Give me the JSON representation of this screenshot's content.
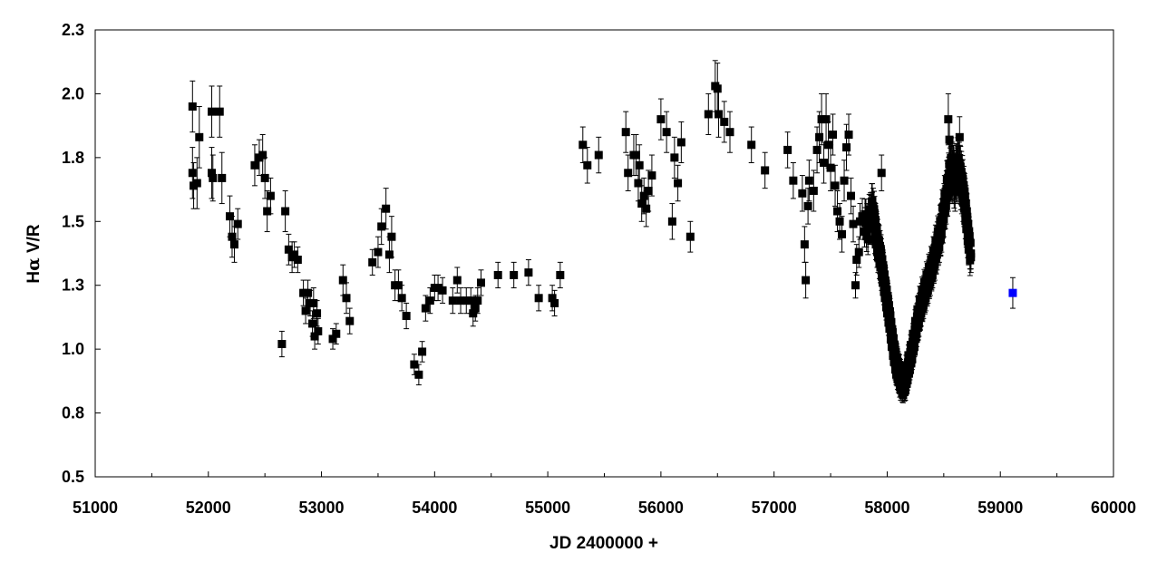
{
  "chart_data": {
    "type": "scatter",
    "title": "",
    "xlabel": "JD 2400000 +",
    "ylabel_prefix": "H",
    "ylabel_greek": "α",
    "ylabel_suffix": " V/R",
    "xlim": [
      51000,
      60000
    ],
    "ylim": [
      0.5,
      2.25
    ],
    "x_ticks": [
      "51000",
      "52000",
      "53000",
      "54000",
      "55000",
      "56000",
      "57000",
      "58000",
      "59000",
      "60000"
    ],
    "x_tick_values": [
      51000,
      52000,
      53000,
      54000,
      55000,
      56000,
      57000,
      58000,
      59000,
      60000
    ],
    "y_ticks": [
      "0.5",
      "0.8",
      "1.0",
      "1.3",
      "1.5",
      "1.8",
      "2.0",
      "2.3"
    ],
    "y_tick_values": [
      0.5,
      0.75,
      1.0,
      1.25,
      1.5,
      1.75,
      2.0,
      2.25
    ],
    "grid": false,
    "legend": "none",
    "colors": {
      "main": "#000000",
      "highlight": "#0000ff"
    },
    "series": [
      {
        "marker": "square",
        "color": "#000000",
        "points": [
          [
            51860,
            1.95,
            0.1
          ],
          [
            51860,
            1.69,
            0.1
          ],
          [
            51870,
            1.64,
            0.09
          ],
          [
            51900,
            1.65,
            0.1
          ],
          [
            51920,
            1.83,
            0.12
          ],
          [
            52030,
            1.93,
            0.1
          ],
          [
            52030,
            1.69,
            0.1
          ],
          [
            52040,
            1.67,
            0.09
          ],
          [
            52100,
            1.93,
            0.1
          ],
          [
            52120,
            1.67,
            0.1
          ],
          [
            52190,
            1.52,
            0.08
          ],
          [
            52210,
            1.44,
            0.08
          ],
          [
            52230,
            1.41,
            0.07
          ],
          [
            52260,
            1.49,
            0.06
          ],
          [
            52410,
            1.72,
            0.08
          ],
          [
            52450,
            1.75,
            0.07
          ],
          [
            52480,
            1.76,
            0.08
          ],
          [
            52500,
            1.67,
            0.08
          ],
          [
            52520,
            1.54,
            0.08
          ],
          [
            52550,
            1.6,
            0.07
          ],
          [
            52650,
            1.02,
            0.05
          ],
          [
            52680,
            1.54,
            0.08
          ],
          [
            52710,
            1.39,
            0.06
          ],
          [
            52740,
            1.36,
            0.06
          ],
          [
            52760,
            1.37,
            0.05
          ],
          [
            52790,
            1.35,
            0.05
          ],
          [
            52840,
            1.22,
            0.05
          ],
          [
            52860,
            1.15,
            0.05
          ],
          [
            52880,
            1.22,
            0.05
          ],
          [
            52900,
            1.18,
            0.05
          ],
          [
            52920,
            1.1,
            0.05
          ],
          [
            52930,
            1.18,
            0.06
          ],
          [
            52940,
            1.05,
            0.05
          ],
          [
            52960,
            1.14,
            0.05
          ],
          [
            52970,
            1.07,
            0.05
          ],
          [
            53100,
            1.04,
            0.04
          ],
          [
            53130,
            1.06,
            0.04
          ],
          [
            53190,
            1.27,
            0.06
          ],
          [
            53220,
            1.2,
            0.06
          ],
          [
            53250,
            1.11,
            0.05
          ],
          [
            53450,
            1.34,
            0.05
          ],
          [
            53500,
            1.38,
            0.06
          ],
          [
            53530,
            1.48,
            0.07
          ],
          [
            53570,
            1.55,
            0.08
          ],
          [
            53600,
            1.37,
            0.07
          ],
          [
            53620,
            1.44,
            0.08
          ],
          [
            53650,
            1.25,
            0.06
          ],
          [
            53680,
            1.25,
            0.06
          ],
          [
            53710,
            1.2,
            0.05
          ],
          [
            53750,
            1.13,
            0.05
          ],
          [
            53820,
            0.94,
            0.04
          ],
          [
            53860,
            0.9,
            0.04
          ],
          [
            53890,
            0.99,
            0.04
          ],
          [
            53920,
            1.16,
            0.05
          ],
          [
            53960,
            1.19,
            0.05
          ],
          [
            54000,
            1.24,
            0.05
          ],
          [
            54030,
            1.24,
            0.05
          ],
          [
            54070,
            1.23,
            0.05
          ],
          [
            54160,
            1.19,
            0.05
          ],
          [
            54200,
            1.27,
            0.05
          ],
          [
            54230,
            1.19,
            0.05
          ],
          [
            54280,
            1.19,
            0.05
          ],
          [
            54320,
            1.19,
            0.05
          ],
          [
            54340,
            1.14,
            0.05
          ],
          [
            54360,
            1.16,
            0.05
          ],
          [
            54380,
            1.19,
            0.05
          ],
          [
            54410,
            1.26,
            0.05
          ],
          [
            54560,
            1.29,
            0.05
          ],
          [
            54700,
            1.29,
            0.05
          ],
          [
            54830,
            1.3,
            0.05
          ],
          [
            54920,
            1.2,
            0.05
          ],
          [
            55040,
            1.2,
            0.05
          ],
          [
            55060,
            1.18,
            0.05
          ],
          [
            55110,
            1.29,
            0.05
          ],
          [
            55310,
            1.8,
            0.07
          ],
          [
            55350,
            1.72,
            0.07
          ],
          [
            55450,
            1.76,
            0.07
          ],
          [
            55690,
            1.85,
            0.08
          ],
          [
            55710,
            1.69,
            0.07
          ],
          [
            55760,
            1.76,
            0.08
          ],
          [
            55780,
            1.76,
            0.08
          ],
          [
            55800,
            1.65,
            0.07
          ],
          [
            55810,
            1.72,
            0.08
          ],
          [
            55830,
            1.57,
            0.07
          ],
          [
            55850,
            1.6,
            0.07
          ],
          [
            55870,
            1.55,
            0.07
          ],
          [
            55890,
            1.62,
            0.08
          ],
          [
            55920,
            1.68,
            0.08
          ],
          [
            56000,
            1.9,
            0.08
          ],
          [
            56050,
            1.85,
            0.08
          ],
          [
            56100,
            1.5,
            0.07
          ],
          [
            56120,
            1.75,
            0.08
          ],
          [
            56150,
            1.65,
            0.07
          ],
          [
            56180,
            1.81,
            0.08
          ],
          [
            56260,
            1.44,
            0.06
          ],
          [
            56420,
            1.92,
            0.08
          ],
          [
            56480,
            2.03,
            0.1
          ],
          [
            56500,
            2.02,
            0.1
          ],
          [
            56510,
            1.92,
            0.09
          ],
          [
            56560,
            1.89,
            0.08
          ],
          [
            56610,
            1.85,
            0.08
          ],
          [
            56800,
            1.8,
            0.07
          ],
          [
            56920,
            1.7,
            0.07
          ],
          [
            57120,
            1.78,
            0.07
          ],
          [
            57170,
            1.66,
            0.07
          ],
          [
            57250,
            1.61,
            0.07
          ],
          [
            57270,
            1.41,
            0.07
          ],
          [
            57280,
            1.27,
            0.07
          ],
          [
            57300,
            1.56,
            0.07
          ],
          [
            57310,
            1.66,
            0.08
          ],
          [
            57350,
            1.62,
            0.08
          ],
          [
            57380,
            1.78,
            0.09
          ],
          [
            57400,
            1.83,
            0.1
          ],
          [
            57420,
            1.9,
            0.1
          ],
          [
            57440,
            1.73,
            0.08
          ],
          [
            57460,
            1.9,
            0.1
          ],
          [
            57480,
            1.8,
            0.09
          ],
          [
            57500,
            1.71,
            0.09
          ],
          [
            57520,
            1.84,
            0.08
          ],
          [
            57540,
            1.64,
            0.08
          ],
          [
            57560,
            1.54,
            0.08
          ],
          [
            57580,
            1.5,
            0.07
          ],
          [
            57600,
            1.45,
            0.07
          ],
          [
            57620,
            1.66,
            0.08
          ],
          [
            57640,
            1.79,
            0.09
          ],
          [
            57660,
            1.84,
            0.08
          ],
          [
            57680,
            1.6,
            0.07
          ],
          [
            57700,
            1.49,
            0.07
          ],
          [
            57720,
            1.25,
            0.05
          ],
          [
            57730,
            1.35,
            0.06
          ],
          [
            57750,
            1.38,
            0.06
          ],
          [
            57760,
            1.5,
            0.07
          ],
          [
            57780,
            1.52,
            0.07
          ]
        ]
      },
      {
        "marker": "square",
        "color": "#000000",
        "trend": [
          [
            57800,
            1.5,
            0.06
          ],
          [
            57830,
            1.47,
            0.06
          ],
          [
            57860,
            1.55,
            0.07
          ],
          [
            57880,
            1.52,
            0.07
          ],
          [
            57900,
            1.45,
            0.06
          ],
          [
            57920,
            1.4,
            0.06
          ],
          [
            57940,
            1.36,
            0.06
          ],
          [
            57960,
            1.3,
            0.05
          ],
          [
            57980,
            1.24,
            0.05
          ],
          [
            58000,
            1.18,
            0.05
          ],
          [
            58020,
            1.12,
            0.05
          ],
          [
            58040,
            1.05,
            0.04
          ],
          [
            58060,
            0.99,
            0.04
          ],
          [
            58080,
            0.94,
            0.04
          ],
          [
            58100,
            0.91,
            0.04
          ],
          [
            58120,
            0.88,
            0.04
          ],
          [
            58140,
            0.86,
            0.03
          ],
          [
            58160,
            0.88,
            0.04
          ],
          [
            58180,
            0.92,
            0.04
          ],
          [
            58200,
            0.96,
            0.04
          ],
          [
            58220,
            1.0,
            0.04
          ],
          [
            58240,
            1.05,
            0.04
          ],
          [
            58260,
            1.1,
            0.05
          ],
          [
            58280,
            1.14,
            0.05
          ],
          [
            58300,
            1.18,
            0.05
          ],
          [
            58320,
            1.21,
            0.05
          ],
          [
            58340,
            1.24,
            0.05
          ],
          [
            58360,
            1.27,
            0.05
          ],
          [
            58380,
            1.3,
            0.05
          ],
          [
            58400,
            1.33,
            0.05
          ],
          [
            58420,
            1.37,
            0.06
          ],
          [
            58440,
            1.41,
            0.06
          ],
          [
            58460,
            1.44,
            0.06
          ],
          [
            58480,
            1.49,
            0.07
          ],
          [
            58500,
            1.55,
            0.07
          ],
          [
            58520,
            1.6,
            0.07
          ],
          [
            58540,
            1.66,
            0.08
          ],
          [
            58560,
            1.72,
            0.08
          ],
          [
            58580,
            1.69,
            0.08
          ],
          [
            58600,
            1.66,
            0.08
          ],
          [
            58620,
            1.72,
            0.08
          ],
          [
            58640,
            1.69,
            0.08
          ],
          [
            58660,
            1.65,
            0.08
          ],
          [
            58680,
            1.59,
            0.07
          ],
          [
            58700,
            1.51,
            0.07
          ],
          [
            58720,
            1.43,
            0.06
          ],
          [
            58740,
            1.36,
            0.06
          ]
        ],
        "spread": 0.04,
        "extra": [
          [
            58540,
            1.9,
            0.1
          ],
          [
            58550,
            1.82,
            0.08
          ],
          [
            58640,
            1.83,
            0.08
          ],
          [
            57950,
            1.69,
            0.07
          ]
        ]
      },
      {
        "marker": "square",
        "color": "#0000ff",
        "points": [
          [
            59110,
            1.22,
            0.06
          ]
        ]
      }
    ]
  }
}
